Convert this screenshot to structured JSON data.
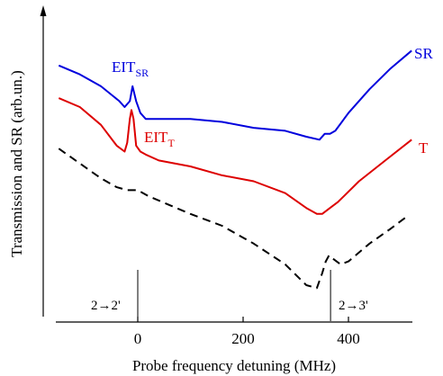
{
  "chart_data": {
    "type": "line",
    "xlabel": "Probe frequency detuning (MHz)",
    "ylabel": "Transmission and SR (arb.un.)",
    "x_ticks": [
      0,
      200,
      400
    ],
    "xlim": [
      -150,
      530
    ],
    "ylim": [
      0,
      1
    ],
    "y_axis_ticks": false,
    "annotations": [
      {
        "text": "2→2'",
        "x": 0
      },
      {
        "text": "2→3'",
        "x": 366
      }
    ],
    "series": [
      {
        "name": "SR",
        "label_main": "EIT",
        "label_sub": "SR",
        "color": "#0000dd",
        "style": "solid",
        "x": [
          -150,
          -110,
          -70,
          -35,
          -25,
          -15,
          -10,
          -3,
          5,
          15,
          40,
          100,
          160,
          220,
          280,
          320,
          345,
          355,
          365,
          375,
          400,
          440,
          480,
          520
        ],
        "y": [
          0.84,
          0.81,
          0.77,
          0.72,
          0.7,
          0.72,
          0.77,
          0.72,
          0.68,
          0.66,
          0.66,
          0.66,
          0.65,
          0.63,
          0.62,
          0.6,
          0.59,
          0.61,
          0.61,
          0.62,
          0.68,
          0.76,
          0.83,
          0.89
        ]
      },
      {
        "name": "T",
        "label_main": "EIT",
        "label_sub": "T",
        "color": "#dd0000",
        "style": "solid",
        "x": [
          -150,
          -110,
          -70,
          -40,
          -25,
          -20,
          -15,
          -12,
          -8,
          -3,
          5,
          15,
          40,
          100,
          160,
          220,
          280,
          320,
          340,
          350,
          365,
          380,
          420,
          470,
          520
        ],
        "y": [
          0.73,
          0.7,
          0.64,
          0.57,
          0.55,
          0.58,
          0.66,
          0.69,
          0.66,
          0.57,
          0.55,
          0.54,
          0.52,
          0.5,
          0.47,
          0.45,
          0.41,
          0.36,
          0.34,
          0.34,
          0.36,
          0.38,
          0.45,
          0.52,
          0.59
        ]
      },
      {
        "name": "",
        "color": "#000000",
        "style": "dashed",
        "x": [
          -150,
          -110,
          -70,
          -40,
          -20,
          0,
          20,
          60,
          100,
          160,
          220,
          280,
          320,
          340,
          350,
          357,
          363,
          370,
          385,
          400,
          440,
          480,
          510
        ],
        "y": [
          0.56,
          0.51,
          0.46,
          0.43,
          0.42,
          0.42,
          0.4,
          0.37,
          0.34,
          0.3,
          0.24,
          0.17,
          0.1,
          0.09,
          0.14,
          0.18,
          0.2,
          0.19,
          0.17,
          0.18,
          0.24,
          0.29,
          0.33
        ]
      }
    ],
    "end_labels": [
      "SR",
      "T"
    ]
  }
}
